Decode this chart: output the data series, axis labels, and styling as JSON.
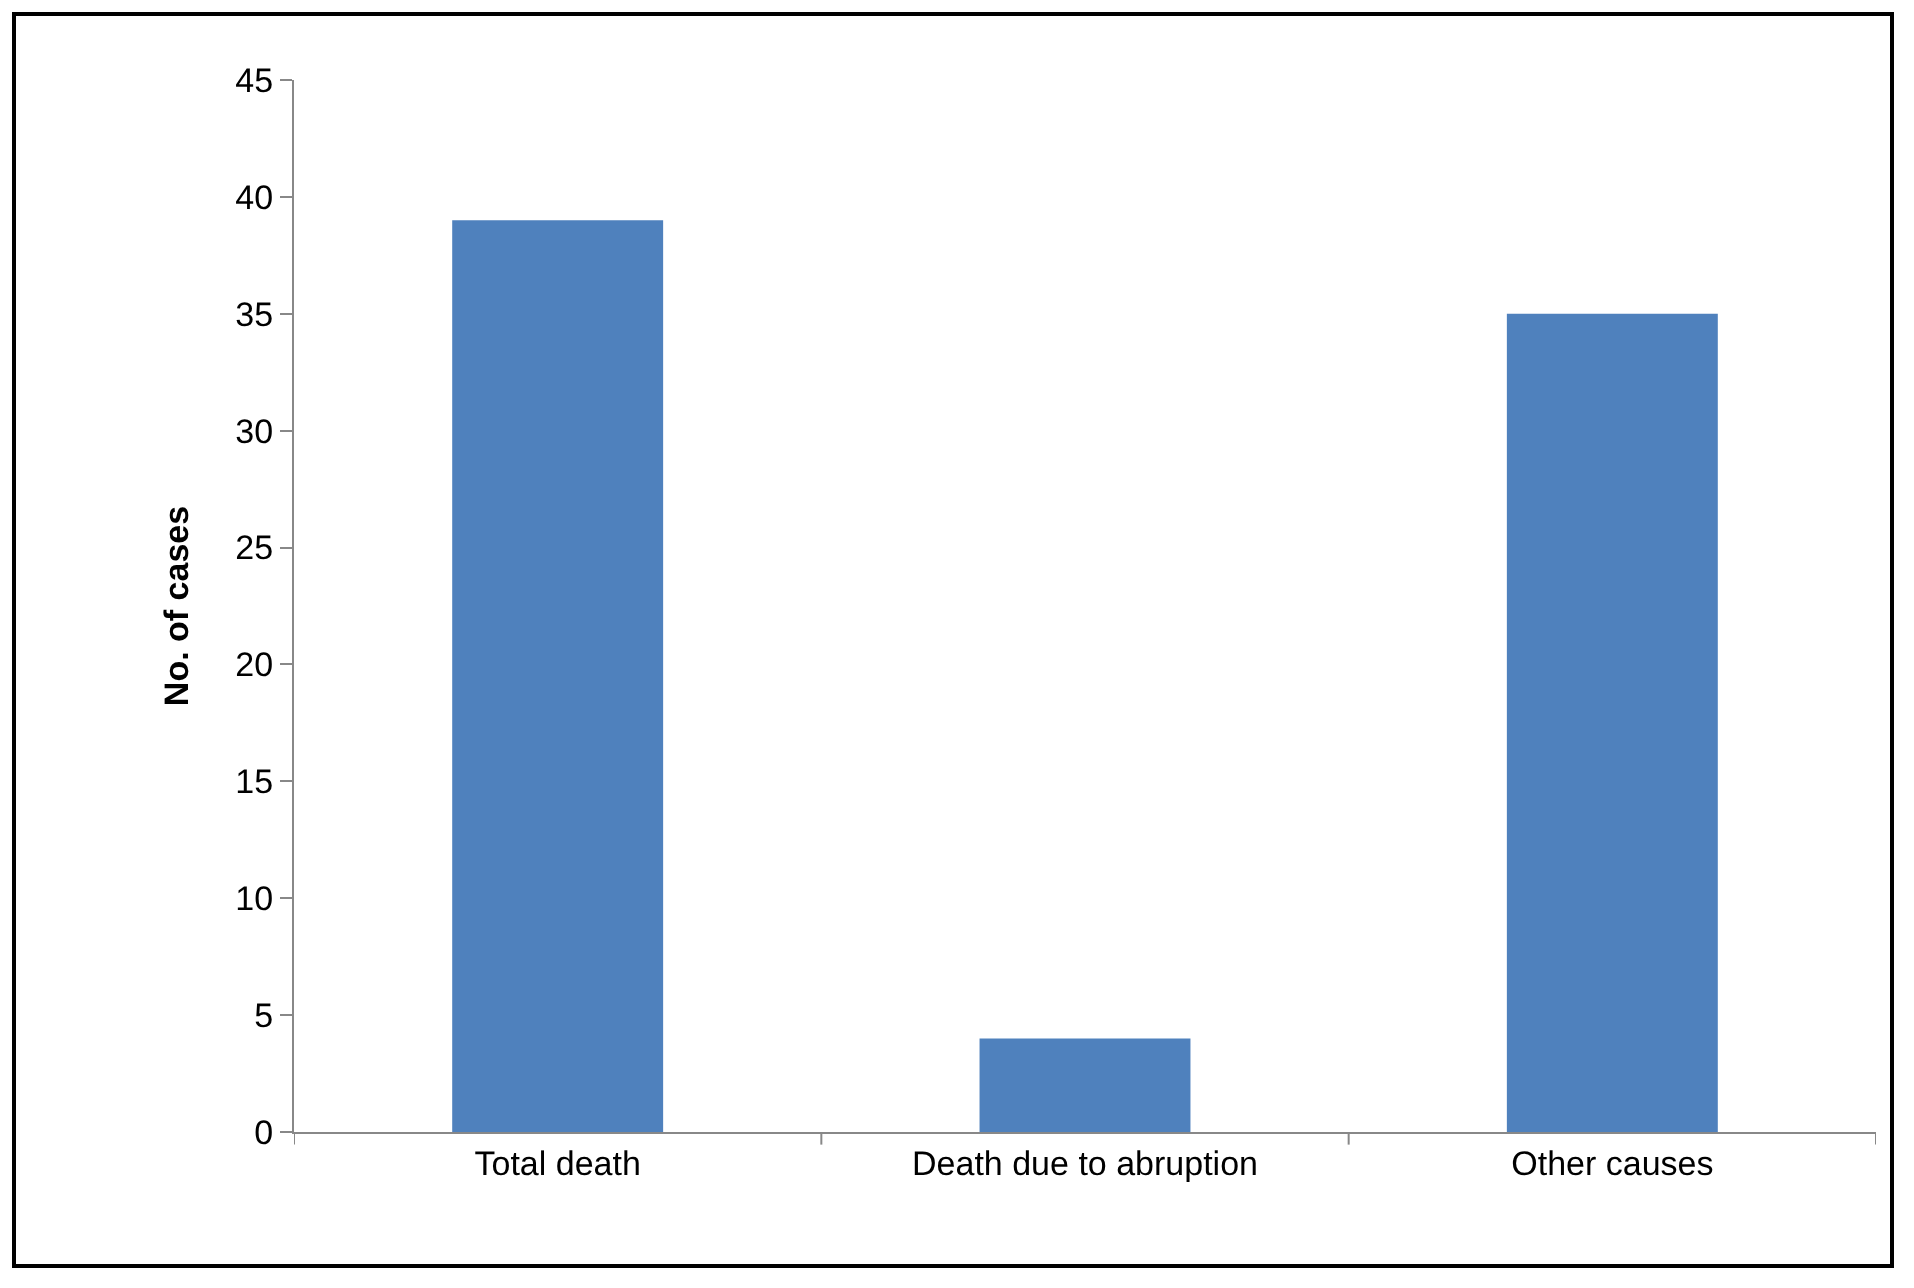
{
  "chart_data": {
    "type": "bar",
    "categories": [
      "Total death",
      "Death due to abruption",
      "Other causes"
    ],
    "values": [
      39,
      4,
      35
    ],
    "color": "#4f81bd",
    "ylabel": "No. of cases",
    "ylim": [
      0,
      45
    ],
    "yticks": [
      0,
      5,
      10,
      15,
      20,
      25,
      30,
      35,
      40,
      45
    ],
    "grid": false,
    "legend": false
  }
}
